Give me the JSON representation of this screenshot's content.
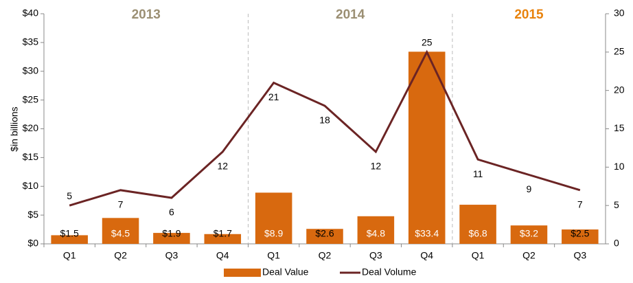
{
  "chart_data": {
    "type": "bar_line",
    "y_axis_label": "$in billions",
    "categories": [
      "Q1",
      "Q2",
      "Q3",
      "Q4",
      "Q1",
      "Q2",
      "Q3",
      "Q4",
      "Q1",
      "Q2",
      "Q3"
    ],
    "years": [
      {
        "label": "2013",
        "quarters": 4,
        "color": "#9b8f73"
      },
      {
        "label": "2014",
        "quarters": 4,
        "color": "#9b8f73"
      },
      {
        "label": "2015",
        "quarters": 3,
        "color": "#e8820c"
      }
    ],
    "series": [
      {
        "name": "Deal Value",
        "type": "bar",
        "color": "#d8690f",
        "axis": "y",
        "values": [
          1.5,
          4.5,
          1.9,
          1.7,
          8.9,
          2.6,
          4.8,
          33.4,
          6.8,
          3.2,
          2.5
        ],
        "value_labels": [
          "$1.5",
          "$4.5",
          "$1.9",
          "$1.7",
          "$8.9",
          "$2.6",
          "$4.8",
          "$33.4",
          "$6.8",
          "$3.2",
          "$2.5"
        ],
        "value_label_colors": [
          "#000",
          "#fff",
          "#000",
          "#000",
          "#fff",
          "#000",
          "#fff",
          "#fff",
          "#fff",
          "#fff",
          "#000"
        ]
      },
      {
        "name": "Deal Volume",
        "type": "line",
        "color": "#6b2424",
        "axis": "y2",
        "values": [
          5,
          7,
          6,
          12,
          21,
          18,
          12,
          25,
          11,
          9,
          7
        ],
        "label_position": [
          "above",
          "below",
          "below",
          "below",
          "below",
          "below",
          "below",
          "above",
          "below",
          "below",
          "below"
        ]
      }
    ],
    "ylim": [
      0,
      40
    ],
    "yticks": [
      {
        "value": 0,
        "label": "$0"
      },
      {
        "value": 5,
        "label": "$5"
      },
      {
        "value": 10,
        "label": "$10"
      },
      {
        "value": 15,
        "label": "$15"
      },
      {
        "value": 20,
        "label": "$20"
      },
      {
        "value": 25,
        "label": "$25"
      },
      {
        "value": 30,
        "label": "$30"
      },
      {
        "value": 35,
        "label": "$35"
      },
      {
        "value": 40,
        "label": "$40"
      }
    ],
    "y2lim": [
      0,
      30
    ],
    "y2ticks": [
      0,
      5,
      10,
      15,
      20,
      25,
      30
    ],
    "legend": "bottom"
  }
}
